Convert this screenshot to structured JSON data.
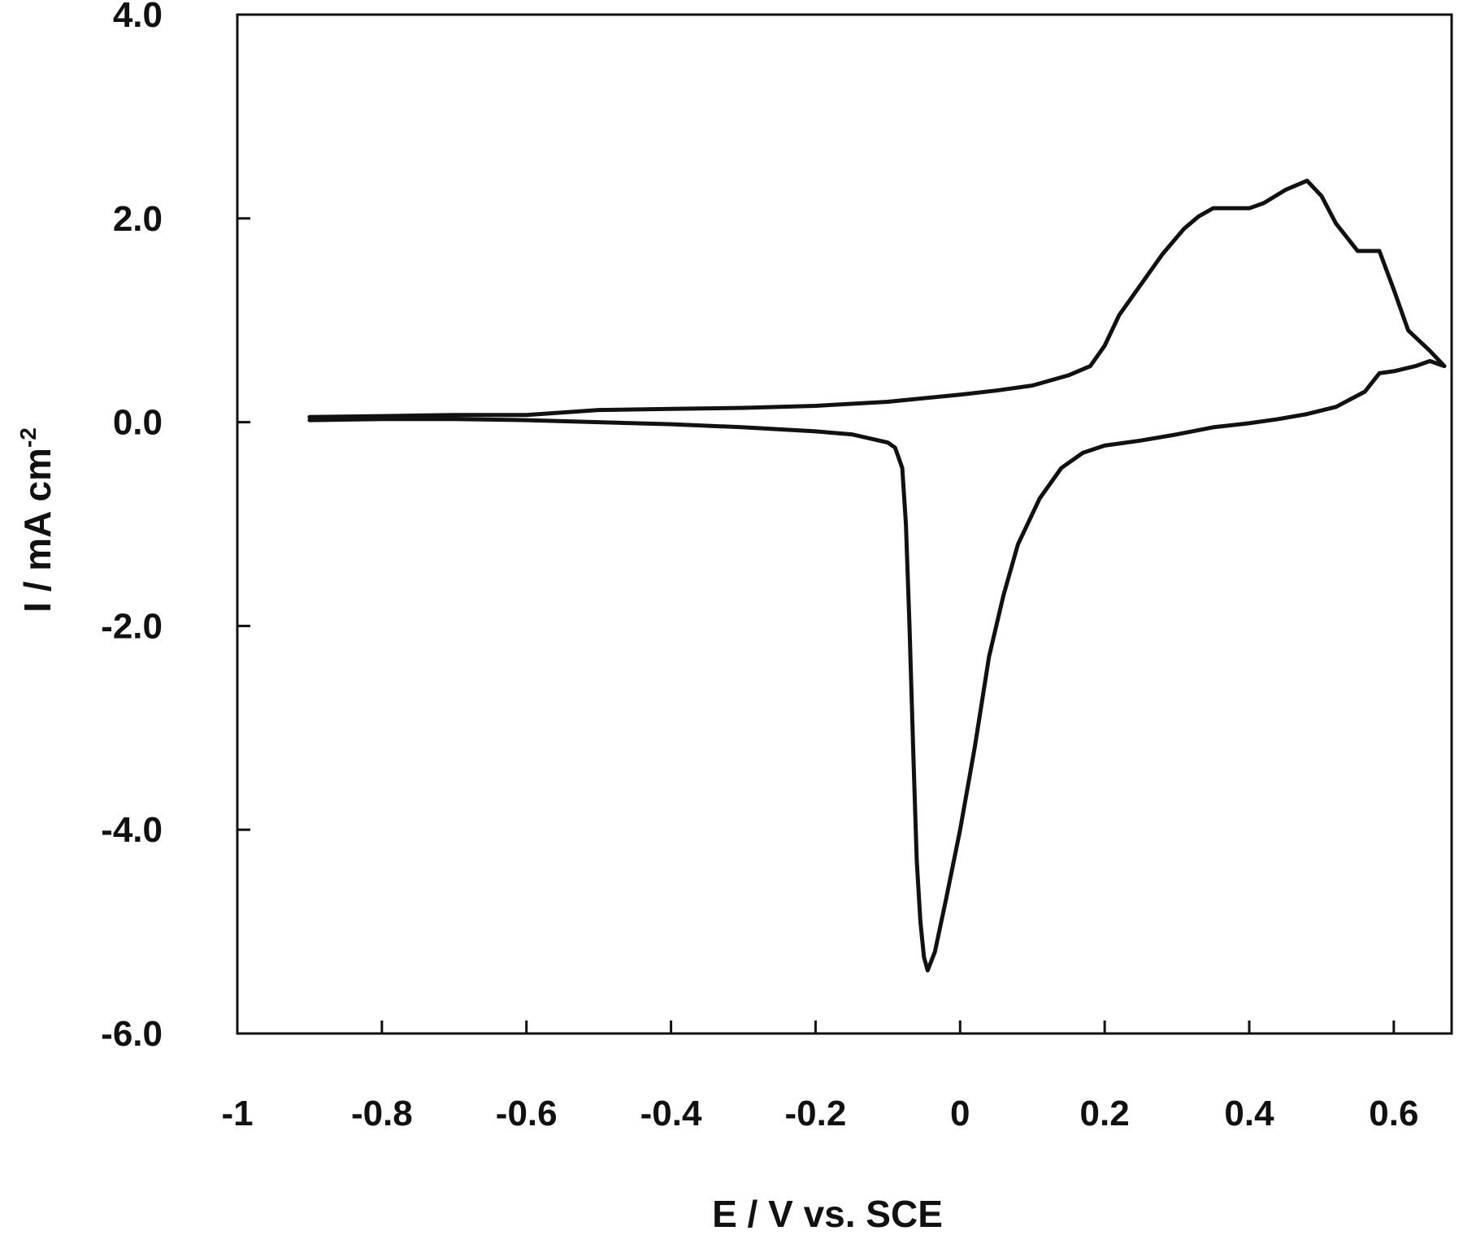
{
  "chart_data": {
    "type": "line",
    "title": "",
    "xlabel": "E / V vs. SCE",
    "ylabel": {
      "main": "I / mA cm",
      "superscript": "-2"
    },
    "xlim": [
      -1,
      0.68
    ],
    "ylim": [
      -6,
      4
    ],
    "x_ticks": [
      {
        "value": -1,
        "label": "-1"
      },
      {
        "value": -0.8,
        "label": "-0.8"
      },
      {
        "value": -0.6,
        "label": "-0.6"
      },
      {
        "value": -0.4,
        "label": "-0.4"
      },
      {
        "value": -0.2,
        "label": "-0.2"
      },
      {
        "value": 0,
        "label": "0"
      },
      {
        "value": 0.2,
        "label": "0.2"
      },
      {
        "value": 0.4,
        "label": "0.4"
      },
      {
        "value": 0.6,
        "label": "0.6"
      }
    ],
    "y_ticks": [
      {
        "value": 4,
        "label": "4.0"
      },
      {
        "value": 2,
        "label": "2.0"
      },
      {
        "value": 0,
        "label": "0.0"
      },
      {
        "value": -2,
        "label": "-2.0"
      },
      {
        "value": -4,
        "label": "-4.0"
      },
      {
        "value": -6,
        "label": "-6.0"
      }
    ],
    "grid": false,
    "legend": "none",
    "line_color": "#111111",
    "series": [
      {
        "points": [
          [
            -0.9,
            0.05
          ],
          [
            -0.8,
            0.06
          ],
          [
            -0.7,
            0.07
          ],
          [
            -0.6,
            0.07
          ],
          [
            -0.5,
            0.12
          ],
          [
            -0.4,
            0.13
          ],
          [
            -0.3,
            0.14
          ],
          [
            -0.2,
            0.16
          ],
          [
            -0.1,
            0.2
          ],
          [
            0.0,
            0.27
          ],
          [
            0.05,
            0.31
          ],
          [
            0.1,
            0.36
          ],
          [
            0.15,
            0.46
          ],
          [
            0.18,
            0.55
          ],
          [
            0.2,
            0.75
          ],
          [
            0.22,
            1.05
          ],
          [
            0.25,
            1.35
          ],
          [
            0.28,
            1.65
          ],
          [
            0.31,
            1.9
          ],
          [
            0.33,
            2.02
          ],
          [
            0.35,
            2.1
          ],
          [
            0.4,
            2.1
          ],
          [
            0.42,
            2.15
          ],
          [
            0.45,
            2.28
          ],
          [
            0.48,
            2.37
          ],
          [
            0.5,
            2.22
          ],
          [
            0.52,
            1.95
          ],
          [
            0.55,
            1.68
          ],
          [
            0.58,
            1.68
          ],
          [
            0.6,
            1.3
          ],
          [
            0.62,
            0.9
          ],
          [
            0.65,
            0.7
          ],
          [
            0.67,
            0.55
          ],
          [
            0.65,
            0.6
          ],
          [
            0.63,
            0.55
          ],
          [
            0.6,
            0.5
          ],
          [
            0.58,
            0.48
          ],
          [
            0.56,
            0.3
          ],
          [
            0.52,
            0.15
          ],
          [
            0.48,
            0.08
          ],
          [
            0.44,
            0.03
          ],
          [
            0.4,
            -0.01
          ],
          [
            0.35,
            -0.05
          ],
          [
            0.3,
            -0.12
          ],
          [
            0.25,
            -0.18
          ],
          [
            0.2,
            -0.23
          ],
          [
            0.17,
            -0.3
          ],
          [
            0.14,
            -0.45
          ],
          [
            0.11,
            -0.75
          ],
          [
            0.08,
            -1.2
          ],
          [
            0.06,
            -1.7
          ],
          [
            0.04,
            -2.3
          ],
          [
            0.02,
            -3.2
          ],
          [
            0.0,
            -4.0
          ],
          [
            -0.02,
            -4.7
          ],
          [
            -0.035,
            -5.2
          ],
          [
            -0.045,
            -5.38
          ],
          [
            -0.05,
            -5.25
          ],
          [
            -0.055,
            -4.9
          ],
          [
            -0.06,
            -4.3
          ],
          [
            -0.065,
            -3.2
          ],
          [
            -0.07,
            -2.0
          ],
          [
            -0.075,
            -1.0
          ],
          [
            -0.08,
            -0.45
          ],
          [
            -0.09,
            -0.25
          ],
          [
            -0.1,
            -0.2
          ],
          [
            -0.15,
            -0.12
          ],
          [
            -0.2,
            -0.09
          ],
          [
            -0.3,
            -0.05
          ],
          [
            -0.4,
            -0.02
          ],
          [
            -0.5,
            0.0
          ],
          [
            -0.6,
            0.02
          ],
          [
            -0.7,
            0.03
          ],
          [
            -0.8,
            0.03
          ],
          [
            -0.9,
            0.02
          ]
        ]
      }
    ]
  }
}
